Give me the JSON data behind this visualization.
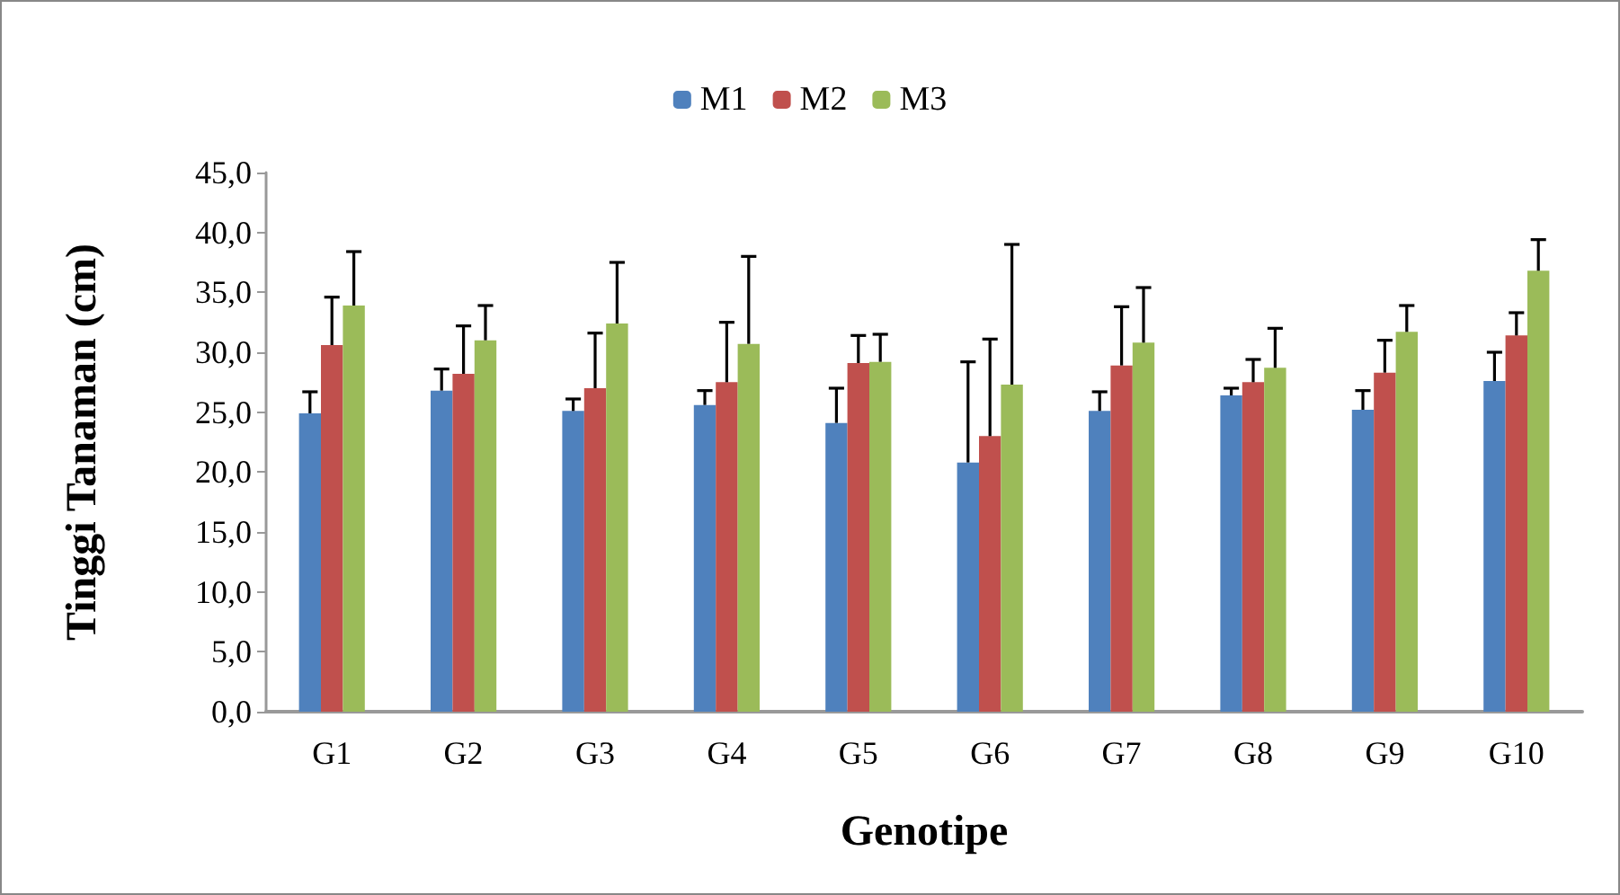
{
  "chart_data": {
    "type": "bar",
    "xlabel": "Genotipe",
    "ylabel": "Tinggi Tanaman (cm)",
    "categories": [
      "G1",
      "G2",
      "G3",
      "G4",
      "G5",
      "G6",
      "G7",
      "G8",
      "G9",
      "G10"
    ],
    "series": [
      {
        "name": "M1",
        "color": "#4f81bd",
        "values": [
          24.9,
          26.8,
          25.1,
          25.6,
          24.1,
          20.8,
          25.1,
          26.4,
          25.2,
          27.6
        ],
        "errors": [
          [
            24.9,
            26.7
          ],
          [
            26.8,
            28.6
          ],
          [
            25.1,
            26.1
          ],
          [
            25.6,
            26.8
          ],
          [
            24.1,
            27.0
          ],
          [
            20.8,
            29.2
          ],
          [
            25.1,
            26.7
          ],
          [
            26.4,
            27.0
          ],
          [
            25.2,
            26.8
          ],
          [
            27.6,
            30.0
          ]
        ]
      },
      {
        "name": "M2",
        "color": "#c0504d",
        "values": [
          30.6,
          28.2,
          27.0,
          27.5,
          29.1,
          23.0,
          28.9,
          27.5,
          28.3,
          31.4
        ],
        "errors": [
          [
            30.6,
            34.6
          ],
          [
            28.2,
            32.2
          ],
          [
            27.0,
            31.6
          ],
          [
            27.5,
            32.5
          ],
          [
            29.1,
            31.4
          ],
          [
            23.0,
            31.1
          ],
          [
            28.9,
            33.8
          ],
          [
            27.5,
            29.4
          ],
          [
            28.3,
            31.0
          ],
          [
            31.4,
            33.3
          ]
        ]
      },
      {
        "name": "M3",
        "color": "#9bbb59",
        "values": [
          33.9,
          31.0,
          32.4,
          30.7,
          29.2,
          27.3,
          30.8,
          28.7,
          31.7,
          36.8
        ],
        "errors": [
          [
            33.9,
            38.4
          ],
          [
            31.0,
            33.9
          ],
          [
            32.4,
            37.5
          ],
          [
            30.7,
            38.0
          ],
          [
            29.2,
            31.5
          ],
          [
            27.3,
            39.0
          ],
          [
            30.8,
            35.4
          ],
          [
            28.7,
            32.0
          ],
          [
            31.7,
            33.9
          ],
          [
            36.8,
            39.4
          ]
        ]
      }
    ],
    "ylim": [
      0,
      45
    ],
    "yticks": [
      {
        "value": 0,
        "label": "0,0"
      },
      {
        "value": 5,
        "label": "5,0"
      },
      {
        "value": 10,
        "label": "10,0"
      },
      {
        "value": 15,
        "label": "15,0"
      },
      {
        "value": 20,
        "label": "20,0"
      },
      {
        "value": 25,
        "label": "25,0"
      },
      {
        "value": 30,
        "label": "30,0"
      },
      {
        "value": 35,
        "label": "35,0"
      },
      {
        "value": 40,
        "label": "40,0"
      },
      {
        "value": 45,
        "label": "45,0"
      }
    ],
    "grid": false,
    "legend": "top"
  }
}
